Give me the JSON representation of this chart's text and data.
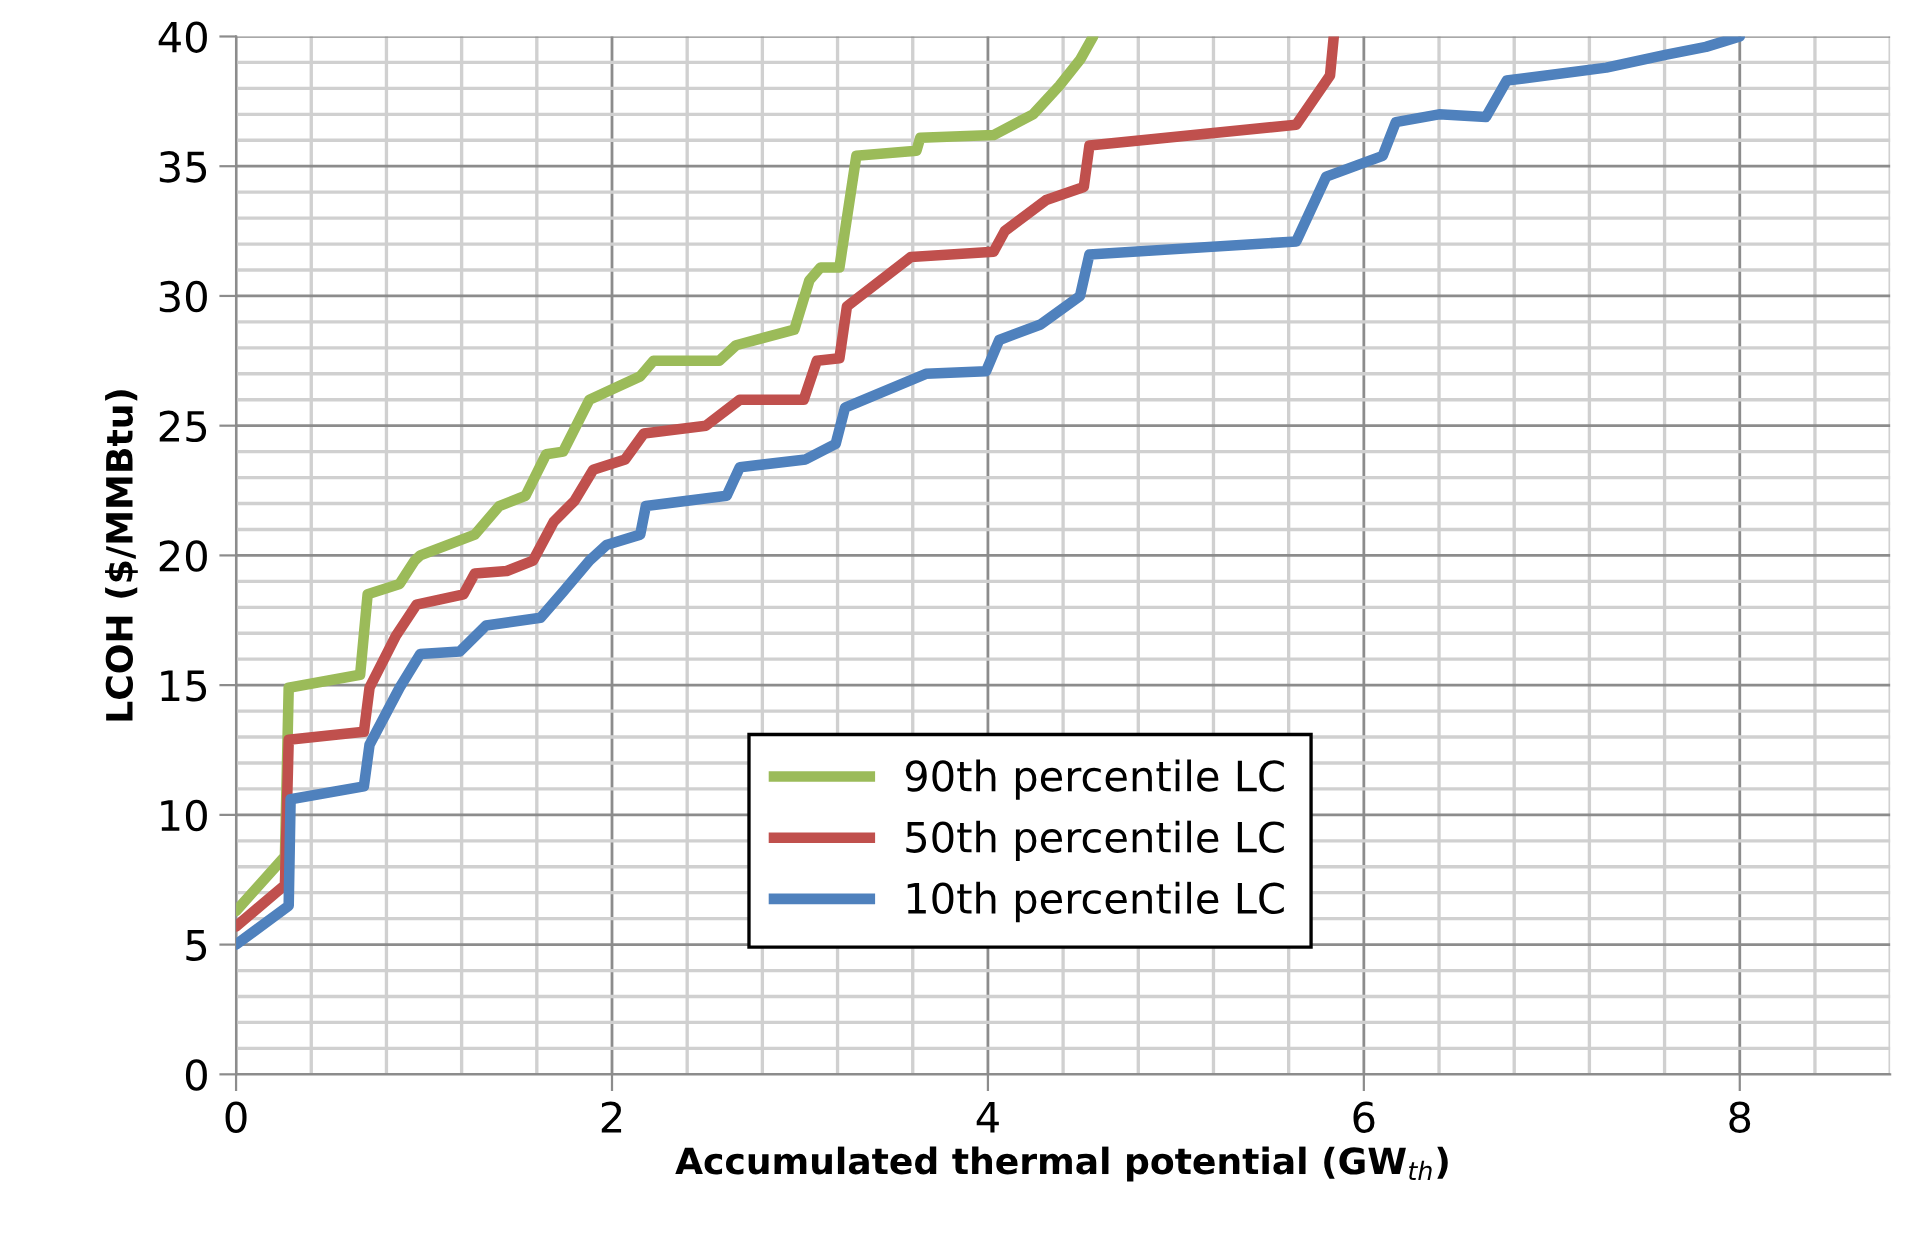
{
  "chart_data": {
    "type": "line",
    "xlabel": "Accumulated thermal potential (GW$_{th}$)",
    "ylabel": "LCOH ($/MMBtu)",
    "xlim": [
      0,
      8.8
    ],
    "ylim": [
      0,
      40
    ],
    "xticks": [
      0,
      2,
      4,
      6,
      8
    ],
    "yticks": [
      0,
      5,
      10,
      15,
      20,
      25,
      30,
      35,
      40
    ],
    "grid": true,
    "legend": "bottom",
    "marker": "none",
    "line_style": "solid",
    "series": [
      {
        "name": "90th percentile LC",
        "color": "#9bbb59",
        "x": [
          0,
          0.26,
          0.28,
          0.66,
          0.7,
          0.87,
          0.95,
          0.98,
          1.27,
          1.4,
          1.54,
          1.65,
          1.74,
          1.88,
          2.15,
          2.22,
          2.57,
          2.66,
          2.97,
          3.05,
          3.11,
          3.21,
          3.3,
          3.62,
          3.64,
          4.03,
          4.24,
          4.38,
          4.49,
          4.56
        ],
        "values": [
          6.3,
          8.4,
          14.9,
          15.4,
          18.5,
          18.9,
          19.8,
          20.0,
          20.8,
          21.9,
          22.3,
          23.9,
          24.0,
          26.0,
          26.9,
          27.5,
          27.5,
          28.1,
          28.7,
          30.6,
          31.1,
          31.1,
          35.4,
          35.6,
          36.1,
          36.2,
          37.0,
          38.1,
          39.1,
          40
        ]
      },
      {
        "name": "50th percentile LC",
        "color": "#c0504d",
        "x": [
          0,
          0.26,
          0.28,
          0.68,
          0.71,
          0.85,
          0.96,
          1.21,
          1.27,
          1.44,
          1.58,
          1.69,
          1.8,
          1.9,
          2.07,
          2.17,
          2.5,
          2.68,
          3.02,
          3.09,
          3.21,
          3.25,
          3.59,
          4.03,
          4.09,
          4.31,
          4.51,
          4.54,
          5.64,
          5.82,
          5.84
        ],
        "values": [
          5.7,
          7.3,
          12.9,
          13.2,
          14.9,
          16.9,
          18.1,
          18.5,
          19.3,
          19.4,
          19.8,
          21.3,
          22.1,
          23.3,
          23.7,
          24.7,
          25.0,
          26.0,
          26.0,
          27.5,
          27.6,
          29.6,
          31.5,
          31.7,
          32.5,
          33.7,
          34.2,
          35.8,
          36.6,
          38.5,
          40
        ]
      },
      {
        "name": "10th percentile LC",
        "color": "#4f81bd",
        "x": [
          0,
          0.28,
          0.29,
          0.68,
          0.71,
          0.87,
          0.98,
          1.19,
          1.33,
          1.62,
          1.74,
          1.88,
          1.97,
          2.15,
          2.18,
          2.61,
          2.68,
          3.03,
          3.19,
          3.24,
          3.67,
          3.99,
          4.06,
          4.28,
          4.49,
          4.54,
          5.64,
          5.8,
          6.1,
          6.17,
          6.4,
          6.65,
          6.76,
          7.29,
          7.61,
          7.82,
          8.0
        ],
        "values": [
          5.0,
          6.5,
          10.6,
          11.1,
          12.7,
          14.9,
          16.2,
          16.3,
          17.3,
          17.6,
          18.6,
          19.8,
          20.4,
          20.8,
          21.9,
          22.3,
          23.4,
          23.7,
          24.3,
          25.7,
          27.0,
          27.1,
          28.3,
          28.9,
          30.0,
          31.6,
          32.1,
          34.6,
          35.4,
          36.7,
          37.0,
          36.9,
          38.3,
          38.8,
          39.3,
          39.6,
          40.0
        ]
      }
    ]
  }
}
